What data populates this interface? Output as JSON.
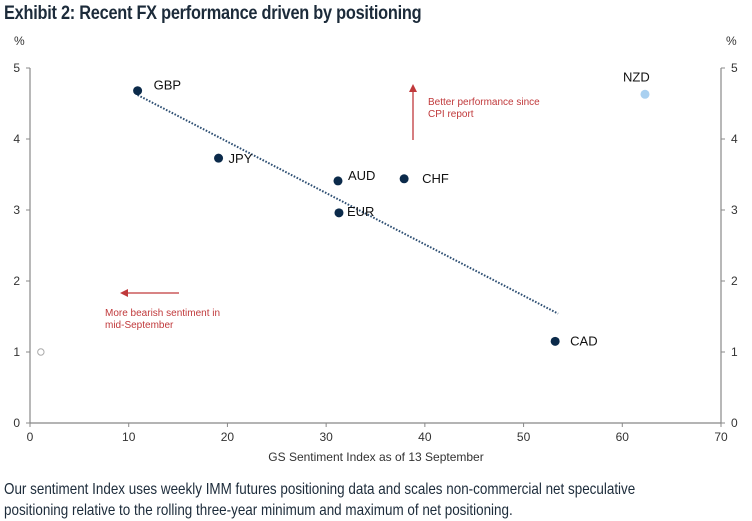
{
  "title": "Exhibit 2: Recent FX performance driven by positioning",
  "caption_lines": [
    "Our sentiment Index uses weekly IMM futures positioning data and scales non-commercial net speculative",
    "positioning relative to the rolling three-year minimum and maximum of net positioning."
  ],
  "chart_data": {
    "type": "scatter",
    "title": "Exhibit 2: Recent FX performance driven by positioning",
    "xlabel": "GS Sentiment Index as of 13 September",
    "ylabel": "%",
    "ylabel_right": "%",
    "xlim": [
      0,
      70
    ],
    "ylim": [
      0,
      5
    ],
    "xticks": [
      0,
      10,
      20,
      30,
      40,
      50,
      60,
      70
    ],
    "yticks": [
      0,
      1,
      2,
      3,
      4,
      5
    ],
    "grid": false,
    "points": [
      {
        "label": "GBP",
        "x": 10.9,
        "y": 4.68,
        "color": "#0b2a4a",
        "style": "filled"
      },
      {
        "label": "JPY",
        "x": 19.1,
        "y": 3.73,
        "color": "#0b2a4a",
        "style": "filled"
      },
      {
        "label": "AUD",
        "x": 31.2,
        "y": 3.41,
        "color": "#0b2a4a",
        "style": "filled"
      },
      {
        "label": "CHF",
        "x": 37.9,
        "y": 3.44,
        "color": "#0b2a4a",
        "style": "filled"
      },
      {
        "label": "EUR",
        "x": 31.3,
        "y": 2.96,
        "color": "#0b2a4a",
        "style": "filled"
      },
      {
        "label": "CAD",
        "x": 53.2,
        "y": 1.15,
        "color": "#0b2a4a",
        "style": "filled"
      },
      {
        "label": "NZD",
        "x": 62.3,
        "y": 4.63,
        "color": "#a9d0f0",
        "style": "filled"
      },
      {
        "label": "",
        "x": 1.1,
        "y": 1.0,
        "color": "#aaaaaa",
        "style": "hollow"
      }
    ],
    "trendline": {
      "x": [
        10.9,
        53.5
      ],
      "y": [
        4.62,
        1.54
      ],
      "style": "dotted",
      "color": "#2e4f73"
    },
    "annotations": [
      {
        "text_lines": [
          "Better performance since",
          "CPI  report"
        ],
        "arrow": "up",
        "color": "#c0393b"
      },
      {
        "text_lines": [
          "More bearish sentiment in",
          "mid-September"
        ],
        "arrow": "left",
        "color": "#c0393b"
      }
    ]
  }
}
